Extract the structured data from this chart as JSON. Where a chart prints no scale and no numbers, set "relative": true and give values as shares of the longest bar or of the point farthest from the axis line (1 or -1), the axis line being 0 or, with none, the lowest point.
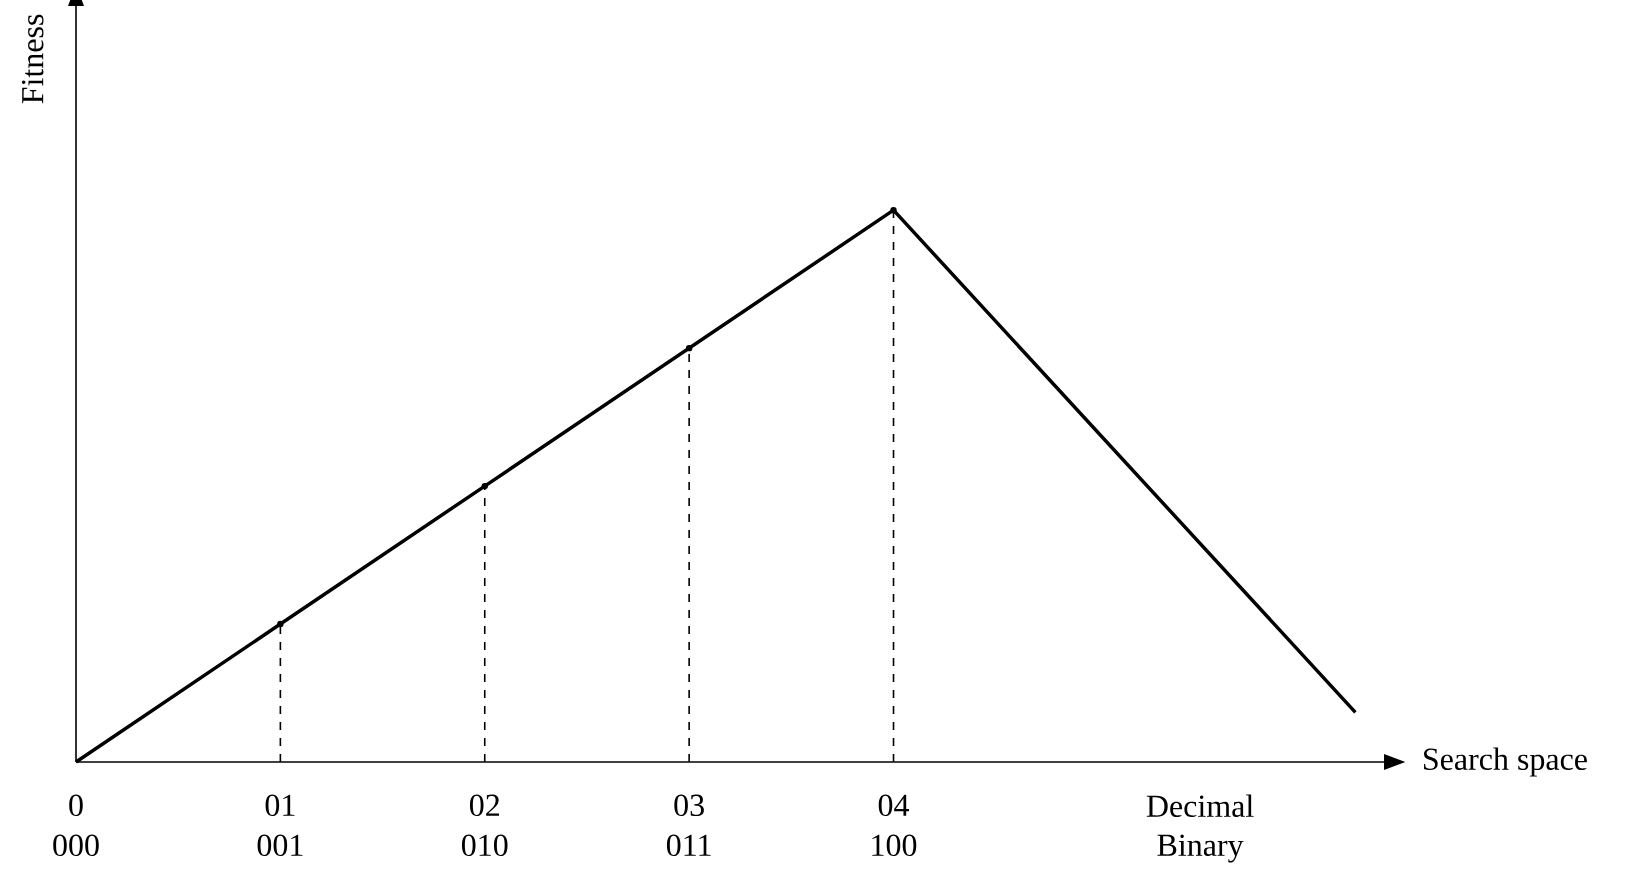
{
  "chart_data": {
    "type": "line",
    "relative": true,
    "xlabel": "Search space",
    "ylabel": "Fitness",
    "xlim": [
      0,
      6.4
    ],
    "xticks": [
      {
        "value": 0,
        "label": "0"
      },
      {
        "value": 1,
        "label": "01"
      },
      {
        "value": 2,
        "label": "02"
      },
      {
        "value": 3,
        "label": "03"
      },
      {
        "value": 4,
        "label": "04"
      },
      {
        "value": 5.5,
        "label": "Decimal"
      }
    ],
    "annotations": [
      "000",
      "001",
      "010",
      "011",
      "100",
      "Binary"
    ],
    "series": [
      {
        "color": "#000000",
        "line_style": "solid",
        "marker": "none",
        "x": [
          0,
          1,
          2,
          3,
          4,
          6.26
        ],
        "values": [
          0,
          0.25,
          0.5,
          0.75,
          1,
          0.09
        ]
      },
      {
        "type": "lollipop",
        "color": "#000000",
        "line_style": "dashed",
        "x": [
          1,
          2,
          3,
          4
        ],
        "values": [
          0.25,
          0.5,
          0.75,
          1
        ]
      }
    ]
  }
}
